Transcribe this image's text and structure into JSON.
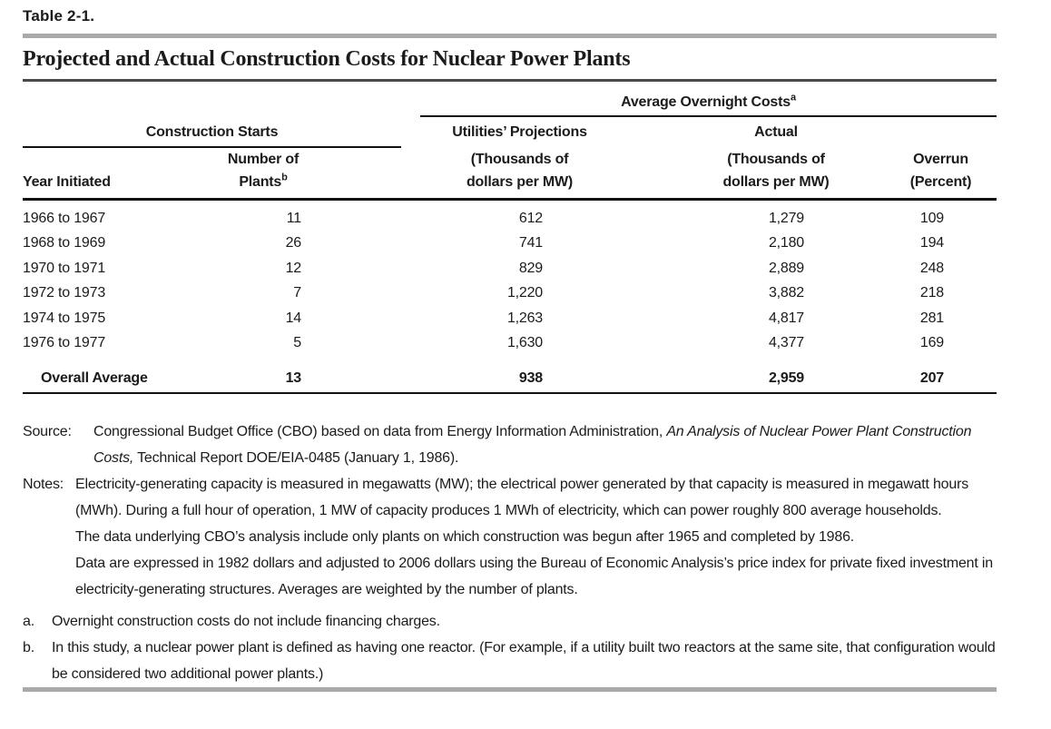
{
  "page": {
    "table_label": "Table 2-1.",
    "title": "Projected and Actual Construction Costs for Nuclear Power Plants"
  },
  "table": {
    "spanners": {
      "avg_overnight_costs": "Average Overnight Costs",
      "avg_note_ref": "a",
      "construction_starts": "Construction Starts"
    },
    "columns": {
      "year": "Year Initiated",
      "plants_line1": "Number of",
      "plants_line2": "Plants",
      "plants_note_ref": "b",
      "proj_line1": "Utilities’ Projections",
      "proj_line2": "(Thousands of",
      "proj_line3": "dollars per MW)",
      "actual_line1": "Actual",
      "actual_line2": "(Thousands of",
      "actual_line3": "dollars per MW)",
      "overrun_line1": "Overrun",
      "overrun_line2": "(Percent)"
    },
    "rows": [
      {
        "year": "1966 to 1967",
        "plants": "11",
        "projected": "612",
        "actual": "1,279",
        "overrun": "109"
      },
      {
        "year": "1968 to 1969",
        "plants": "26",
        "projected": "741",
        "actual": "2,180",
        "overrun": "194"
      },
      {
        "year": "1970 to 1971",
        "plants": "12",
        "projected": "829",
        "actual": "2,889",
        "overrun": "248"
      },
      {
        "year": "1972 to 1973",
        "plants": "7",
        "projected": "1,220",
        "actual": "3,882",
        "overrun": "218"
      },
      {
        "year": "1974 to 1975",
        "plants": "14",
        "projected": "1,263",
        "actual": "4,817",
        "overrun": "281"
      },
      {
        "year": "1976 to 1977",
        "plants": "5",
        "projected": "1,630",
        "actual": "4,377",
        "overrun": "169"
      }
    ],
    "overall": {
      "year": "Overall Average",
      "plants": "13",
      "projected": "938",
      "actual": "2,959",
      "overrun": "207"
    }
  },
  "source": {
    "label": "Source:",
    "text_before_italic": "Congressional Budget Office (CBO) based on data from Energy Information Administration, ",
    "italic": "An Analysis of Nuclear Power Plant Construction Costs,",
    "text_after_italic": " Technical Report DOE/EIA-0485 (January 1, 1986)."
  },
  "notes": {
    "label": "Notes:",
    "paragraphs": [
      "Electricity-generating capacity is measured in megawatts (MW); the electrical power generated by that capacity is measured in megawatt hours (MWh). During a full hour of operation, 1 MW of capacity produces 1 MWh of electricity, which can power roughly 800 average households.",
      "The data underlying CBO’s analysis include only plants on which construction was begun after 1965 and completed by 1986.",
      "Data are expressed in 1982 dollars and adjusted to 2006 dollars using the Bureau of Economic Analysis’s price index for private fixed investment in electricity-generating structures. Averages are weighted by the number of plants."
    ]
  },
  "footnotes": [
    {
      "label": "a.",
      "text": "Overnight construction costs do not include financing charges."
    },
    {
      "label": "b.",
      "text": "In this study, a nuclear power plant is defined as having one reactor. (For example, if a utility built two reactors at the same site, that configuration would be considered two additional power plants.)"
    }
  ]
}
